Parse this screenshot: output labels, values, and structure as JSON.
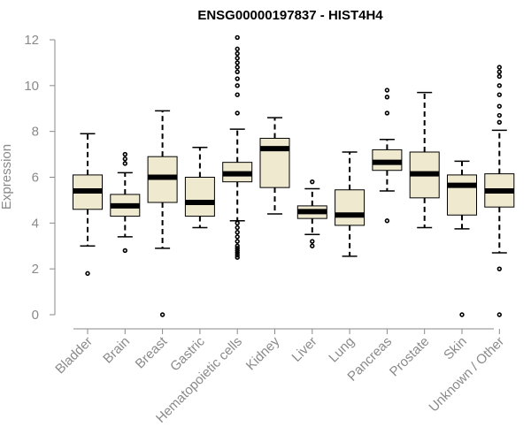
{
  "chart_data": {
    "type": "boxplot",
    "title": "ENSG00000197837 - HIST4H4",
    "xlabel": "",
    "ylabel": "Expression",
    "ylim": [
      0,
      12
    ],
    "yticks": [
      0,
      2,
      4,
      6,
      8,
      10,
      12
    ],
    "box_fill": "#efe9d0",
    "median_color": "#000000",
    "axis_color": "#8a8a8a",
    "categories": [
      "Bladder",
      "Brain",
      "Breast",
      "Gastric",
      "Hematopoietic cells",
      "Kidney",
      "Liver",
      "Lung",
      "Pancreas",
      "Prostate",
      "Skin",
      "Unknown / Other"
    ],
    "boxes": [
      {
        "name": "Bladder",
        "q1": 4.6,
        "median": 5.4,
        "q3": 6.1,
        "whisker_low": 3.0,
        "whisker_high": 7.9,
        "outliers": [
          1.8
        ]
      },
      {
        "name": "Brain",
        "q1": 4.3,
        "median": 4.75,
        "q3": 5.25,
        "whisker_low": 3.4,
        "whisker_high": 6.2,
        "outliers": [
          2.8,
          6.6,
          6.8,
          7.0
        ]
      },
      {
        "name": "Breast",
        "q1": 4.9,
        "median": 6.0,
        "q3": 6.9,
        "whisker_low": 2.9,
        "whisker_high": 8.9,
        "outliers": [
          0.0
        ]
      },
      {
        "name": "Gastric",
        "q1": 4.3,
        "median": 4.9,
        "q3": 6.0,
        "whisker_low": 3.8,
        "whisker_high": 7.3,
        "outliers": []
      },
      {
        "name": "Hematopoietic cells",
        "q1": 5.8,
        "median": 6.15,
        "q3": 6.65,
        "whisker_low": 4.1,
        "whisker_high": 8.1,
        "outliers": [
          2.5,
          2.6,
          2.7,
          2.8,
          2.9,
          3.0,
          3.2,
          3.4,
          3.6,
          3.8,
          4.0,
          8.8,
          9.6,
          10.0,
          10.3,
          10.6,
          10.8,
          11.0,
          11.2,
          11.4,
          11.6,
          12.1
        ]
      },
      {
        "name": "Kidney",
        "q1": 5.55,
        "median": 7.25,
        "q3": 7.7,
        "whisker_low": 4.4,
        "whisker_high": 8.6,
        "outliers": []
      },
      {
        "name": "Liver",
        "q1": 4.2,
        "median": 4.5,
        "q3": 4.75,
        "whisker_low": 3.5,
        "whisker_high": 5.5,
        "outliers": [
          3.0,
          3.2,
          5.8
        ]
      },
      {
        "name": "Lung",
        "q1": 3.9,
        "median": 4.35,
        "q3": 5.45,
        "whisker_low": 2.55,
        "whisker_high": 7.1,
        "outliers": []
      },
      {
        "name": "Pancreas",
        "q1": 6.3,
        "median": 6.65,
        "q3": 7.2,
        "whisker_low": 5.4,
        "whisker_high": 7.65,
        "outliers": [
          4.1,
          8.8,
          9.5,
          9.8
        ]
      },
      {
        "name": "Prostate",
        "q1": 5.1,
        "median": 6.15,
        "q3": 7.1,
        "whisker_low": 3.8,
        "whisker_high": 9.7,
        "outliers": []
      },
      {
        "name": "Skin",
        "q1": 4.35,
        "median": 5.65,
        "q3": 6.1,
        "whisker_low": 3.75,
        "whisker_high": 6.7,
        "outliers": [
          0.0
        ]
      },
      {
        "name": "Unknown / Other",
        "q1": 4.7,
        "median": 5.4,
        "q3": 6.15,
        "whisker_low": 2.7,
        "whisker_high": 8.05,
        "outliers": [
          0.0,
          2.0,
          8.4,
          8.7,
          9.1,
          9.6,
          10.0,
          10.4,
          10.6,
          10.8
        ]
      }
    ]
  }
}
